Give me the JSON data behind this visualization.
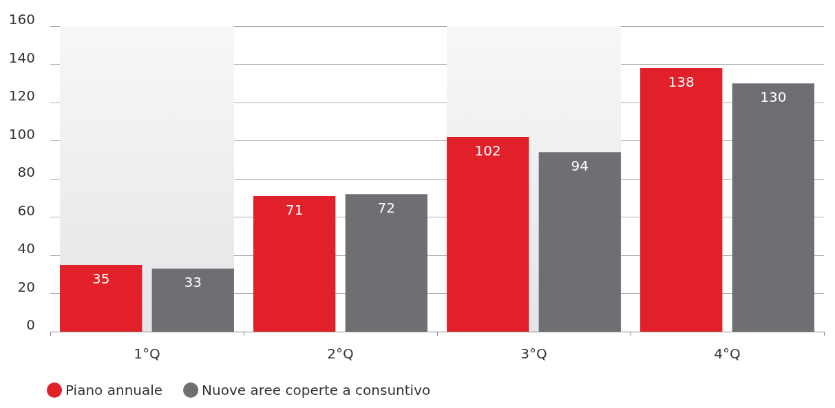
{
  "chart_data": {
    "type": "bar",
    "categories": [
      "1°Q",
      "2°Q",
      "3°Q",
      "4°Q"
    ],
    "series": [
      {
        "name": "Piano annuale",
        "color": "#e1202a",
        "values": [
          35,
          71,
          102,
          138
        ]
      },
      {
        "name": "Nuove aree coperte a consuntivo",
        "color": "#6e6f73",
        "values": [
          33,
          72,
          94,
          130
        ]
      }
    ],
    "ylim": [
      0,
      160
    ],
    "yticks": [
      0,
      20,
      40,
      60,
      80,
      100,
      120,
      140,
      160
    ],
    "grid": "y",
    "legend": "bottom left",
    "data_labels": true,
    "bands": [
      {
        "axis": "x",
        "from": "1°Q",
        "to": "1°Q",
        "color": "#e4e5e7"
      },
      {
        "axis": "x",
        "from": "3°Q",
        "to": "3°Q",
        "color": "#e4e5e7"
      }
    ]
  }
}
